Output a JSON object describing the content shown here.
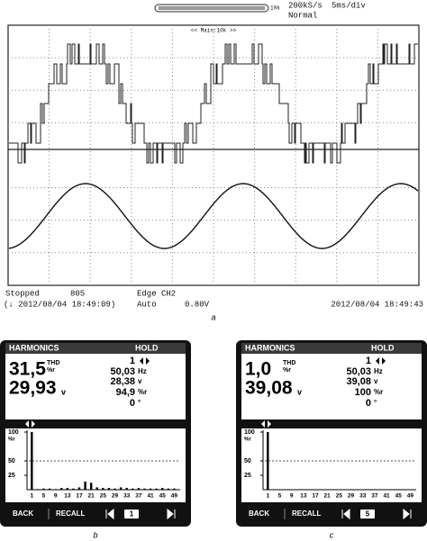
{
  "panel_a": {
    "timebase_bar_label": "10k",
    "sample_rate": "200kS/s",
    "time_div": "5ms/div",
    "mode": "Normal",
    "zoom_label": "<< Main:10k >>",
    "status": "Stopped",
    "count": "805",
    "trigger": "Edge CH2",
    "trigger_mode": "Auto",
    "trigger_level": "0.80V",
    "start_time": "(↓ 2012/08/04 18:49:09)",
    "end_time": "2012/08/04 18:49:43",
    "caption": "a"
  },
  "panel_b": {
    "header": "HARMONICS",
    "status": "HOLD",
    "thd": "31,5",
    "thd_unit": "THD",
    "thd_unit2": "%r",
    "rms": "29,93",
    "rms_unit": "v",
    "order": "1",
    "freq": "50,03",
    "freq_unit": "Hz",
    "volts": "28,38",
    "volts_unit": "v",
    "percent": "94,9",
    "percent_unit": "%r",
    "phase": "0",
    "phase_unit": "°",
    "chart_data": {
      "type": "bar",
      "y_unit": "%r",
      "color": "#000000",
      "x": [
        1,
        3,
        5,
        7,
        9,
        11,
        13,
        15,
        17,
        19,
        21,
        23,
        25,
        27,
        29,
        31,
        33,
        35,
        37,
        39,
        41,
        43,
        45,
        47,
        49
      ],
      "values": [
        100,
        1,
        2,
        2,
        1,
        3,
        3,
        2,
        4,
        14,
        12,
        4,
        3,
        3,
        2,
        4,
        3,
        2,
        3,
        2,
        2,
        2,
        3,
        2,
        2
      ],
      "xlim": [
        0,
        51
      ],
      "ylim": [
        0,
        100
      ],
      "yticks": [
        100,
        50,
        25
      ],
      "xticks": [
        1,
        5,
        9,
        13,
        17,
        21,
        25,
        29,
        33,
        37,
        41,
        45,
        49
      ]
    },
    "footer": {
      "back": "BACK",
      "recall": "RECALL",
      "page": "1"
    },
    "caption": "b"
  },
  "panel_c": {
    "header": "HARMONICS",
    "status": "HOLD",
    "thd": "1,0",
    "thd_unit": "THD",
    "thd_unit2": "%r",
    "rms": "39,08",
    "rms_unit": "v",
    "order": "1",
    "freq": "50,03",
    "freq_unit": "Hz",
    "volts": "39,08",
    "volts_unit": "v",
    "percent": "100",
    "percent_unit": "%r",
    "phase": "0",
    "phase_unit": "°",
    "chart_data": {
      "type": "bar",
      "y_unit": "%r",
      "color": "#000000",
      "x": [
        1
      ],
      "values": [
        100
      ],
      "xlim": [
        0,
        51
      ],
      "ylim": [
        0,
        100
      ],
      "yticks": [
        100,
        50,
        25
      ],
      "xticks": [
        1,
        5,
        9,
        13,
        17,
        21,
        25,
        29,
        33,
        37,
        41,
        45,
        49
      ]
    },
    "footer": {
      "back": "BACK",
      "recall": "RECALL",
      "page": "5"
    },
    "caption": "c"
  }
}
